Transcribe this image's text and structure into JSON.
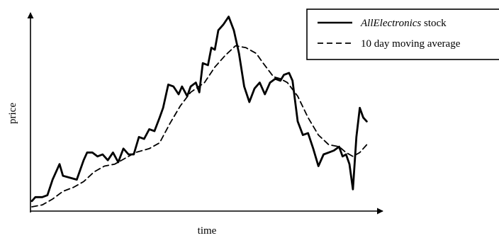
{
  "chart_data": {
    "type": "line",
    "xlabel": "time",
    "ylabel": "price",
    "xlim": [
      0,
      100
    ],
    "ylim": [
      0,
      100
    ],
    "grid": false,
    "legend_position": "top-right",
    "x_ticks": [],
    "y_ticks": [],
    "colors": {
      "axis": "#000000",
      "series": "#000000",
      "legend_border": "#000000"
    },
    "series": [
      {
        "name_italic": "AllElectronics",
        "name_rest": " stock",
        "style": "solid",
        "points": [
          [
            0,
            3
          ],
          [
            1,
            5
          ],
          [
            3,
            5
          ],
          [
            4.5,
            6
          ],
          [
            6,
            14
          ],
          [
            8,
            22
          ],
          [
            9,
            16
          ],
          [
            11,
            15
          ],
          [
            13,
            14
          ],
          [
            15,
            24
          ],
          [
            16,
            28
          ],
          [
            17.5,
            28
          ],
          [
            19,
            26
          ],
          [
            20.5,
            27
          ],
          [
            22,
            24
          ],
          [
            23.5,
            28
          ],
          [
            25,
            23
          ],
          [
            26.5,
            30
          ],
          [
            28,
            27
          ],
          [
            29.5,
            27
          ],
          [
            31,
            36
          ],
          [
            32.5,
            35
          ],
          [
            34,
            40
          ],
          [
            35.5,
            39
          ],
          [
            37,
            46
          ],
          [
            38,
            51
          ],
          [
            39.5,
            63
          ],
          [
            41,
            62
          ],
          [
            42.5,
            58
          ],
          [
            43.5,
            62
          ],
          [
            45,
            57
          ],
          [
            46,
            62
          ],
          [
            47.5,
            64
          ],
          [
            48.5,
            59
          ],
          [
            49.5,
            74
          ],
          [
            51,
            73
          ],
          [
            52,
            82
          ],
          [
            53,
            81
          ],
          [
            54,
            91
          ],
          [
            55.5,
            94
          ],
          [
            57,
            98
          ],
          [
            58.5,
            91
          ],
          [
            60,
            79
          ],
          [
            61.5,
            62
          ],
          [
            63,
            54
          ],
          [
            64.5,
            61
          ],
          [
            66,
            64
          ],
          [
            67.5,
            58
          ],
          [
            69,
            64
          ],
          [
            70.5,
            66
          ],
          [
            72,
            65
          ],
          [
            73,
            68
          ],
          [
            74.5,
            69
          ],
          [
            75.5,
            65
          ],
          [
            77,
            44
          ],
          [
            78.5,
            37
          ],
          [
            80,
            38
          ],
          [
            81.5,
            30
          ],
          [
            83,
            21
          ],
          [
            84.5,
            27
          ],
          [
            86,
            28
          ],
          [
            87.5,
            29
          ],
          [
            89,
            31
          ],
          [
            90,
            26
          ],
          [
            91,
            27
          ],
          [
            92,
            22
          ],
          [
            93,
            9
          ],
          [
            94,
            36
          ],
          [
            95,
            51
          ],
          [
            96,
            46
          ],
          [
            97,
            44
          ]
        ]
      },
      {
        "name": "10 day moving average",
        "style": "dashed",
        "points": [
          [
            0,
            0
          ],
          [
            3,
            1
          ],
          [
            6,
            4
          ],
          [
            9,
            8
          ],
          [
            12,
            10
          ],
          [
            15,
            13
          ],
          [
            18,
            18
          ],
          [
            21,
            21
          ],
          [
            24,
            22
          ],
          [
            27,
            25
          ],
          [
            30,
            28
          ],
          [
            34,
            30
          ],
          [
            37,
            33
          ],
          [
            40,
            43
          ],
          [
            43,
            52
          ],
          [
            46,
            59
          ],
          [
            50,
            64
          ],
          [
            53,
            72
          ],
          [
            56,
            78
          ],
          [
            59,
            83
          ],
          [
            62,
            82
          ],
          [
            65,
            79
          ],
          [
            67,
            74
          ],
          [
            70,
            67
          ],
          [
            72,
            66
          ],
          [
            74,
            64
          ],
          [
            77,
            57
          ],
          [
            80,
            46
          ],
          [
            83,
            37
          ],
          [
            86,
            32
          ],
          [
            89,
            31
          ],
          [
            91,
            28
          ],
          [
            93,
            26
          ],
          [
            95,
            28
          ],
          [
            97,
            32
          ]
        ]
      }
    ]
  }
}
